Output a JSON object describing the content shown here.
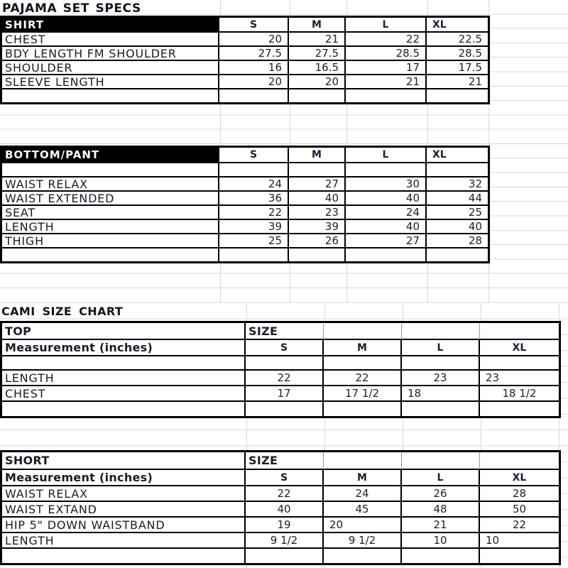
{
  "titles": {
    "main": "PAJAMA SET SPECS",
    "cami": "CAMI SIZE CHART"
  },
  "spec_tables": [
    {
      "header": "SHIRT",
      "sizes": [
        "S",
        "M",
        "L",
        "XL"
      ],
      "rows": [
        {
          "label": "CHEST",
          "values": [
            "20",
            "21",
            "22",
            "22.5"
          ]
        },
        {
          "label": "BDY LENGTH FM SHOULDER",
          "values": [
            "27.5",
            "27.5",
            "28.5",
            "28.5"
          ]
        },
        {
          "label": "SHOULDER",
          "values": [
            "16",
            "16.5",
            "17",
            "17.5"
          ]
        },
        {
          "label": "SLEEVE LENGTH",
          "values": [
            "20",
            "20",
            "21",
            "21"
          ]
        },
        {
          "label": "",
          "values": [
            "",
            "",
            "",
            ""
          ]
        }
      ]
    },
    {
      "header": "BOTTOM/PANT",
      "sizes": [
        "S",
        "M",
        "L",
        "XL"
      ],
      "rows": [
        {
          "label": "",
          "values": [
            "",
            "",
            "",
            ""
          ]
        },
        {
          "label": "WAIST RELAX",
          "values": [
            "24",
            "27",
            "30",
            "32"
          ]
        },
        {
          "label": "WAIST EXTENDED",
          "values": [
            "36",
            "40",
            "40",
            "44"
          ]
        },
        {
          "label": "SEAT",
          "values": [
            "22",
            "23",
            "24",
            "25"
          ]
        },
        {
          "label": "LENGTH",
          "values": [
            "39",
            "39",
            "40",
            "40"
          ]
        },
        {
          "label": "THIGH",
          "values": [
            "25",
            "26",
            "27",
            "28"
          ]
        },
        {
          "label": "",
          "values": [
            "",
            "",
            "",
            ""
          ]
        }
      ]
    }
  ],
  "cami_tables": [
    {
      "header": "TOP",
      "size_label": "SIZE",
      "measure_label": "Measurement (inches)",
      "sizes": [
        "S",
        "M",
        "L",
        "XL"
      ],
      "rows": [
        {
          "label": "",
          "values": [
            "",
            "",
            "",
            ""
          ],
          "align": [
            "c",
            "c",
            "c",
            "c"
          ]
        },
        {
          "label": "LENGTH",
          "values": [
            "22",
            "22",
            "23",
            "23"
          ],
          "align": [
            "c",
            "c",
            "c",
            "l"
          ]
        },
        {
          "label": "CHEST",
          "values": [
            "17",
            "17 1/2",
            "18",
            "18 1/2"
          ],
          "align": [
            "c",
            "c",
            "l",
            "c"
          ]
        },
        {
          "label": "",
          "values": [
            "",
            "",
            "",
            ""
          ],
          "align": [
            "c",
            "c",
            "c",
            "c"
          ]
        }
      ]
    },
    {
      "header": "SHORT",
      "size_label": "SIZE",
      "measure_label": "Measurement (inches)",
      "sizes": [
        "S",
        "M",
        "L",
        "XL"
      ],
      "rows": [
        {
          "label": "WAIST RELAX",
          "values": [
            "22",
            "24",
            "26",
            "28"
          ],
          "align": [
            "c",
            "c",
            "c",
            "c"
          ]
        },
        {
          "label": "WAIST EXTAND",
          "values": [
            "40",
            "45",
            "48",
            "50"
          ],
          "align": [
            "c",
            "c",
            "c",
            "c"
          ]
        },
        {
          "label": "HIP 5\" DOWN WAISTBAND",
          "values": [
            "19",
            "20",
            "21",
            "22"
          ],
          "align": [
            "c",
            "l",
            "c",
            "c"
          ]
        },
        {
          "label": "LENGTH",
          "values": [
            "9 1/2",
            "9 1/2",
            "10",
            "10"
          ],
          "align": [
            "c",
            "c",
            "c",
            "l"
          ]
        },
        {
          "label": "",
          "values": [
            "",
            "",
            "",
            ""
          ],
          "align": [
            "c",
            "c",
            "c",
            "c"
          ]
        }
      ]
    }
  ],
  "colors": {
    "border": "#000000",
    "text": "#1b1b2a",
    "gridline": "#d8d8d8",
    "header_bg": "#000000",
    "header_text": "#ffffff"
  }
}
